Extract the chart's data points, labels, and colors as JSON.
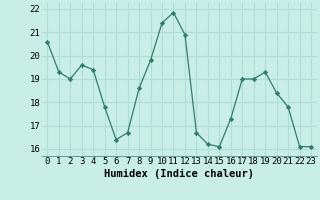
{
  "x": [
    0,
    1,
    2,
    3,
    4,
    5,
    6,
    7,
    8,
    9,
    10,
    11,
    12,
    13,
    14,
    15,
    16,
    17,
    18,
    19,
    20,
    21,
    22,
    23
  ],
  "y": [
    20.6,
    19.3,
    19.0,
    19.6,
    19.4,
    17.8,
    16.4,
    16.7,
    18.6,
    19.8,
    21.4,
    21.85,
    20.9,
    16.7,
    16.2,
    16.1,
    17.3,
    19.0,
    19.0,
    19.3,
    18.4,
    17.8,
    16.1,
    16.1
  ],
  "line_color": "#2e7d6e",
  "marker": "D",
  "marker_size": 2.2,
  "xlabel": "Humidex (Indice chaleur)",
  "xlim": [
    -0.5,
    23.5
  ],
  "ylim": [
    15.7,
    22.3
  ],
  "yticks": [
    16,
    17,
    18,
    19,
    20,
    21,
    22
  ],
  "xticks": [
    0,
    1,
    2,
    3,
    4,
    5,
    6,
    7,
    8,
    9,
    10,
    11,
    12,
    13,
    14,
    15,
    16,
    17,
    18,
    19,
    20,
    21,
    22,
    23
  ],
  "bg_color": "#c8eee6",
  "grid_color": "#b0ddd4",
  "xlabel_fontsize": 7.5,
  "tick_fontsize": 6.5
}
